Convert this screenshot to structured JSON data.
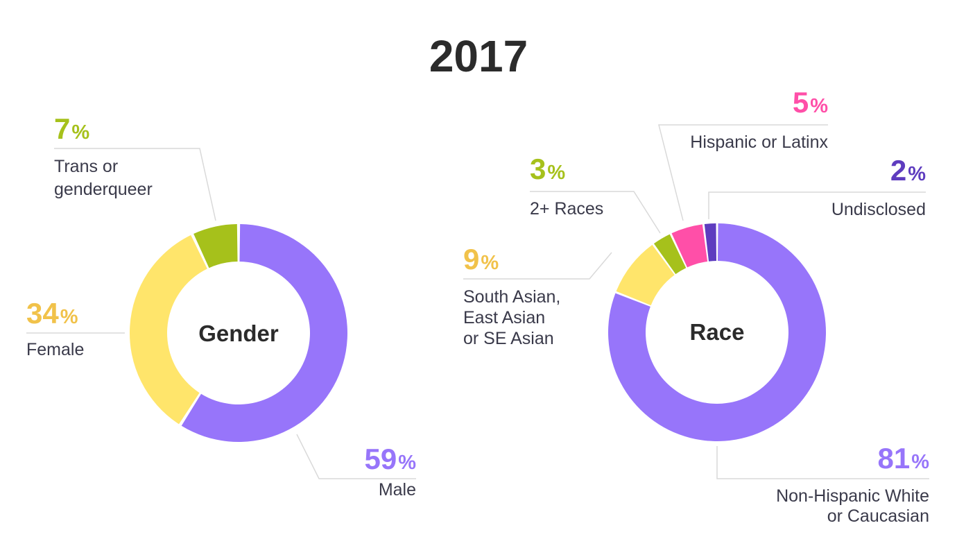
{
  "title": "2017",
  "percent_sign": "%",
  "chart_data": [
    {
      "type": "pie",
      "variant": "donut",
      "center_label": "Gender",
      "categories": [
        "Male",
        "Female",
        "Trans or genderqueer"
      ],
      "values": [
        59,
        34,
        7
      ],
      "colors": [
        "#9775fa",
        "#ffe56b",
        "#a6c11b"
      ],
      "label_colors": [
        "#9775fa",
        "#f1c24a",
        "#a6c11b"
      ],
      "labels": [
        {
          "value": "59",
          "lines": [
            "Male"
          ]
        },
        {
          "value": "34",
          "lines": [
            "Female"
          ]
        },
        {
          "value": "7",
          "lines": [
            "Trans or",
            "genderqueer"
          ]
        }
      ]
    },
    {
      "type": "pie",
      "variant": "donut",
      "center_label": "Race",
      "categories": [
        "Non-Hispanic White or Caucasian",
        "South Asian, East Asian or SE Asian",
        "2+ Races",
        "Hispanic or Latinx",
        "Undisclosed"
      ],
      "values": [
        81,
        9,
        3,
        5,
        2
      ],
      "colors": [
        "#9775fa",
        "#ffe56b",
        "#a6c11b",
        "#ff4fa8",
        "#5e3cbf"
      ],
      "label_colors": [
        "#9775fa",
        "#f1c24a",
        "#a6c11b",
        "#ff4fa8",
        "#5e3cbf"
      ],
      "labels": [
        {
          "value": "81",
          "lines": [
            "Non-Hispanic White",
            "or Caucasian"
          ]
        },
        {
          "value": "9",
          "lines": [
            "South Asian,",
            "East Asian",
            "or SE Asian"
          ]
        },
        {
          "value": "3",
          "lines": [
            "2+ Races"
          ]
        },
        {
          "value": "5",
          "lines": [
            "Hispanic or Latinx"
          ]
        },
        {
          "value": "2",
          "lines": [
            "Undisclosed"
          ]
        }
      ]
    }
  ]
}
